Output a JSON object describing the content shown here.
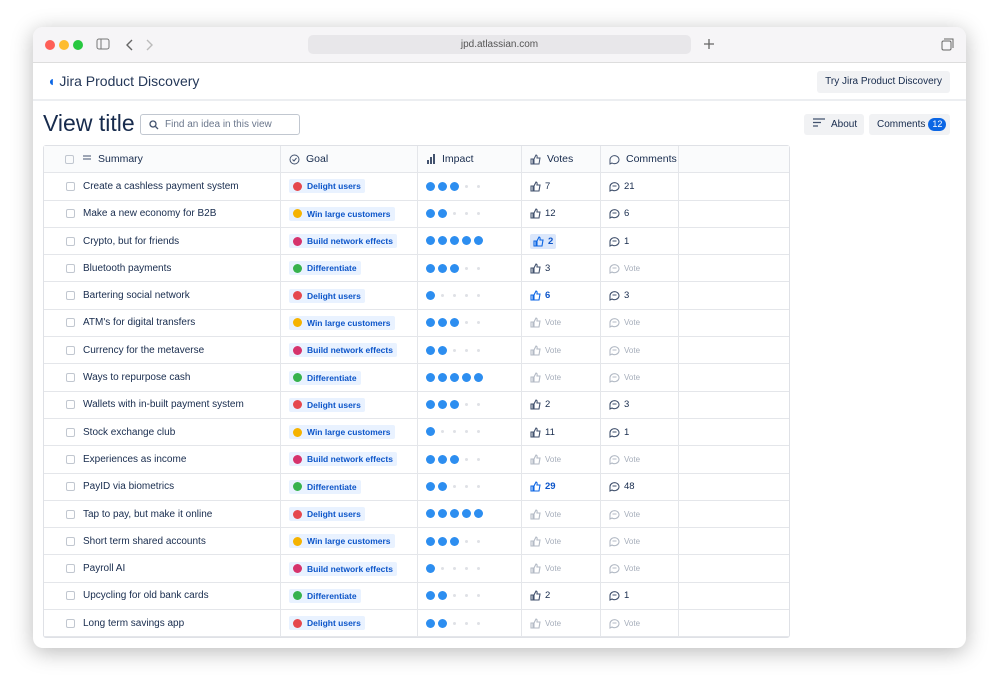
{
  "browser": {
    "url": "jpd.atlassian.com"
  },
  "header": {
    "logo": "Jira Product Discovery",
    "cta": "Try Jira Product Discovery"
  },
  "toolbar": {
    "title": "View title",
    "search_placeholder": "Find an idea in this view",
    "about": "About",
    "comments": "Comments",
    "comments_count": 12
  },
  "table": {
    "columns": [
      "Summary",
      "Goal",
      "Impact",
      "Votes",
      "Comments"
    ],
    "empty_label": "Vote",
    "impact_max": 5,
    "goals": [
      {
        "label": "Delight users",
        "color": "#e5484d"
      },
      {
        "label": "Win large customers",
        "color": "#f5b301"
      },
      {
        "label": "Build network effects",
        "color": "#d6336c"
      },
      {
        "label": "Differentiate",
        "color": "#37b24d"
      }
    ],
    "rows": [
      {
        "summary": "Create a cashless payment system",
        "goal": 0,
        "impact": 3,
        "votes": 7,
        "voted": false,
        "comments": 21
      },
      {
        "summary": "Make a new economy for B2B",
        "goal": 1,
        "impact": 2,
        "votes": 12,
        "voted": false,
        "comments": 6
      },
      {
        "summary": "Crypto, but for friends",
        "goal": 2,
        "impact": 5,
        "votes": 2,
        "voted": true,
        "comments": 1
      },
      {
        "summary": "Bluetooth payments",
        "goal": 3,
        "impact": 3,
        "votes": 3,
        "voted": false,
        "comments": null
      },
      {
        "summary": "Bartering social network",
        "goal": 0,
        "impact": 1,
        "votes": 6,
        "voted": true,
        "comments": 3
      },
      {
        "summary": "ATM's for digital transfers",
        "goal": 1,
        "impact": 3,
        "votes": null,
        "voted": false,
        "comments": null
      },
      {
        "summary": "Currency for the metaverse",
        "goal": 2,
        "impact": 2,
        "votes": null,
        "voted": false,
        "comments": null
      },
      {
        "summary": "Ways to repurpose cash",
        "goal": 3,
        "impact": 5,
        "votes": null,
        "voted": false,
        "comments": null
      },
      {
        "summary": "Wallets with in-built payment system",
        "goal": 0,
        "impact": 3,
        "votes": 2,
        "voted": false,
        "comments": 3
      },
      {
        "summary": "Stock exchange club",
        "goal": 1,
        "impact": 1,
        "votes": 11,
        "voted": false,
        "comments": 1
      },
      {
        "summary": "Experiences as income",
        "goal": 2,
        "impact": 3,
        "votes": null,
        "voted": false,
        "comments": null
      },
      {
        "summary": "PayID via biometrics",
        "goal": 3,
        "impact": 2,
        "votes": 29,
        "voted": true,
        "comments": 48
      },
      {
        "summary": "Tap to pay, but make it online",
        "goal": 0,
        "impact": 5,
        "votes": null,
        "voted": false,
        "comments": null
      },
      {
        "summary": "Short term shared accounts",
        "goal": 1,
        "impact": 3,
        "votes": null,
        "voted": false,
        "comments": null
      },
      {
        "summary": "Payroll AI",
        "goal": 2,
        "impact": 1,
        "votes": null,
        "voted": false,
        "comments": null
      },
      {
        "summary": "Upcycling for old bank cards",
        "goal": 3,
        "impact": 2,
        "votes": 2,
        "voted": false,
        "comments": 1
      },
      {
        "summary": "Long term savings app",
        "goal": 0,
        "impact": 2,
        "votes": null,
        "voted": false,
        "comments": null
      }
    ]
  }
}
